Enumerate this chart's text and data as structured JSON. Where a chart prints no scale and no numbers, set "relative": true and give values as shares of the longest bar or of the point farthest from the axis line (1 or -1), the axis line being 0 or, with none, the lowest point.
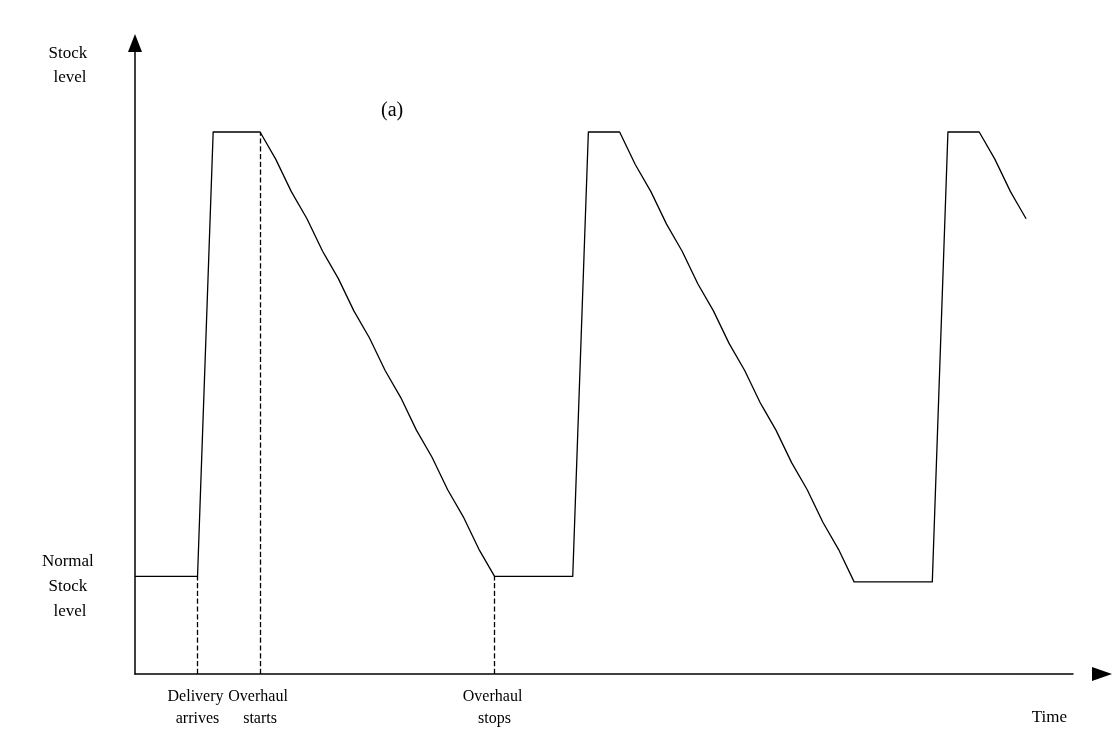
{
  "chart_data": {
    "type": "line",
    "relative": true,
    "title": "(a)",
    "xlabel": "Time",
    "ylabel": "Stock level",
    "categories": [
      null,
      null,
      null,
      null,
      "Delivery arrives",
      null,
      null,
      null,
      "Overhaul starts",
      null,
      null,
      null,
      null,
      null,
      null,
      null,
      null,
      null,
      null,
      null,
      null,
      null,
      null,
      "Overhaul stops",
      null,
      null,
      null,
      null,
      null,
      null,
      null,
      null,
      null,
      null,
      null,
      null,
      null,
      null,
      null,
      null,
      null,
      null,
      null,
      null,
      null,
      null,
      null,
      null,
      null,
      null,
      null,
      null,
      null,
      null,
      null,
      null,
      null,
      null,
      null,
      null,
      null
    ],
    "series": [
      {
        "color": "#000000",
        "values": [
          0.18,
          0.18,
          0.18,
          0.18,
          0.18,
          1,
          1,
          1,
          1,
          0.95,
          0.89,
          0.84,
          0.78,
          0.73,
          0.67,
          0.62,
          0.56,
          0.51,
          0.45,
          0.4,
          0.34,
          0.29,
          0.23,
          0.18,
          0.18,
          0.18,
          0.18,
          0.18,
          0.18,
          1,
          1,
          1,
          0.94,
          0.89,
          0.83,
          0.78,
          0.72,
          0.67,
          0.61,
          0.56,
          0.5,
          0.45,
          0.39,
          0.34,
          0.28,
          0.23,
          0.17,
          0.17,
          0.17,
          0.17,
          0.17,
          0.17,
          1,
          1,
          1,
          0.95,
          0.89,
          0.84,
          null,
          null,
          null
        ]
      }
    ],
    "ref_lines": [
      {
        "axis": "x",
        "value": "Delivery arrives",
        "line_style": "dashed"
      },
      {
        "axis": "x",
        "value": "Overhaul starts",
        "line_style": "dashed"
      },
      {
        "axis": "x",
        "value": "Overhaul stops",
        "line_style": "dashed"
      }
    ],
    "annotations": [
      "Normal Stock level"
    ],
    "grid": false,
    "marker": "none",
    "line_style": "solid"
  }
}
